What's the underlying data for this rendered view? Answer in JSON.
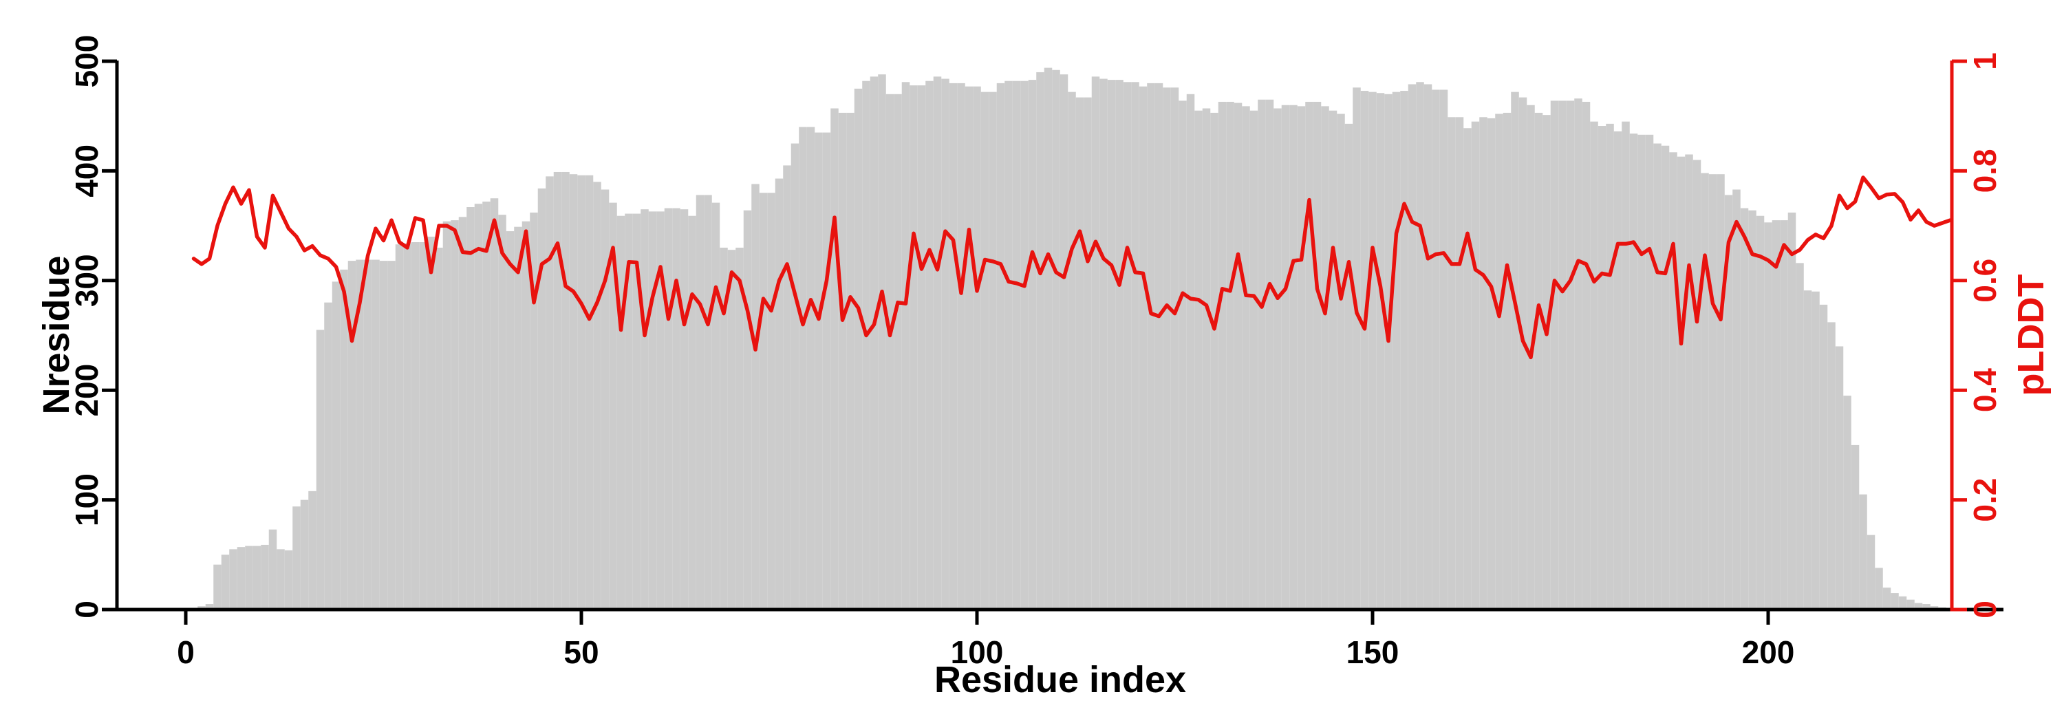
{
  "page": {
    "background": "#ffffff"
  },
  "chart_data": {
    "type": "bar+line dual-axis",
    "title": "",
    "xlabel": "Residue index",
    "x_range": [
      1,
      223
    ],
    "x_ticks": [
      0,
      50,
      100,
      150,
      200
    ],
    "left_axis": {
      "label": "Nresidue",
      "ticks": [
        0,
        100,
        200,
        300,
        400,
        500
      ],
      "range": [
        0,
        500
      ],
      "color": "#000000"
    },
    "right_axis": {
      "label": "pLDDT",
      "ticks": [
        0,
        0.2,
        0.4,
        0.6,
        0.8,
        1
      ],
      "range": [
        0,
        1
      ],
      "color": "#e8120e"
    },
    "grid": false,
    "legend": false,
    "series": [
      {
        "name": "Nresidue",
        "type": "bar",
        "y_axis": "left",
        "color": "#cccccc",
        "values": [
          0,
          3,
          5,
          41,
          50,
          55,
          57,
          58,
          58,
          59,
          73,
          55,
          54,
          94,
          100,
          108,
          255,
          280,
          299,
          310,
          318,
          319,
          319,
          319,
          318,
          318,
          333,
          334,
          335,
          335,
          340,
          330,
          354,
          355,
          358,
          367,
          370,
          372,
          375,
          360,
          345,
          349,
          354,
          362,
          384,
          395,
          399,
          399,
          397,
          396,
          396,
          390,
          383,
          371,
          359,
          361,
          361,
          365,
          363,
          363,
          366,
          366,
          365,
          359,
          378,
          378,
          371,
          330,
          328,
          330,
          364,
          388,
          380,
          380,
          393,
          405,
          425,
          440,
          440,
          435,
          435,
          457,
          453,
          453,
          475,
          482,
          486,
          488,
          470,
          470,
          481,
          478,
          478,
          482,
          486,
          484,
          480,
          480,
          477,
          477,
          472,
          472,
          480,
          482,
          482,
          482,
          483,
          490,
          494,
          492,
          488,
          472,
          467,
          467,
          486,
          484,
          483,
          483,
          481,
          481,
          477,
          480,
          480,
          476,
          476,
          464,
          470,
          455,
          457,
          453,
          463,
          463,
          462,
          459,
          455,
          465,
          465,
          457,
          460,
          460,
          459,
          463,
          463,
          459,
          455,
          452,
          443,
          476,
          473,
          472,
          471,
          470,
          472,
          473,
          479,
          481,
          479,
          474,
          474,
          449,
          449,
          439,
          445,
          449,
          448,
          452,
          453,
          472,
          467,
          460,
          453,
          451,
          464,
          464,
          464,
          466,
          463,
          445,
          441,
          443,
          436,
          445,
          434,
          433,
          433,
          425,
          423,
          417,
          413,
          415,
          410,
          398,
          397,
          397,
          378,
          383,
          366,
          364,
          359,
          353,
          355,
          355,
          362,
          316,
          291,
          290,
          278,
          262,
          240,
          195,
          150,
          105,
          68,
          38,
          20,
          15,
          12,
          9,
          6,
          5,
          3,
          2,
          1
        ]
      },
      {
        "name": "pLDDT",
        "type": "line",
        "y_axis": "right",
        "color": "#e8120e",
        "values": [
          0.64,
          0.63,
          0.64,
          0.7,
          0.74,
          0.77,
          0.74,
          0.765,
          0.68,
          0.66,
          0.755,
          0.725,
          0.695,
          0.68,
          0.655,
          0.663,
          0.646,
          0.64,
          0.625,
          0.58,
          0.49,
          0.56,
          0.645,
          0.695,
          0.673,
          0.71,
          0.67,
          0.66,
          0.714,
          0.71,
          0.615,
          0.7,
          0.7,
          0.692,
          0.652,
          0.65,
          0.658,
          0.654,
          0.71,
          0.65,
          0.63,
          0.615,
          0.69,
          0.56,
          0.63,
          0.64,
          0.668,
          0.59,
          0.58,
          0.558,
          0.53,
          0.56,
          0.6,
          0.66,
          0.51,
          0.634,
          0.633,
          0.5,
          0.57,
          0.625,
          0.53,
          0.6,
          0.52,
          0.575,
          0.557,
          0.52,
          0.588,
          0.54,
          0.615,
          0.6,
          0.545,
          0.474,
          0.567,
          0.545,
          0.6,
          0.63,
          0.575,
          0.52,
          0.565,
          0.53,
          0.6,
          0.715,
          0.528,
          0.57,
          0.55,
          0.5,
          0.52,
          0.58,
          0.5,
          0.56,
          0.558,
          0.686,
          0.621,
          0.656,
          0.62,
          0.69,
          0.674,
          0.577,
          0.693,
          0.581,
          0.638,
          0.635,
          0.63,
          0.598,
          0.595,
          0.59,
          0.652,
          0.613,
          0.648,
          0.615,
          0.606,
          0.658,
          0.69,
          0.635,
          0.671,
          0.64,
          0.628,
          0.592,
          0.66,
          0.615,
          0.613,
          0.54,
          0.535,
          0.555,
          0.54,
          0.577,
          0.567,
          0.565,
          0.555,
          0.512,
          0.585,
          0.581,
          0.648,
          0.573,
          0.572,
          0.552,
          0.594,
          0.568,
          0.585,
          0.636,
          0.638,
          0.747,
          0.585,
          0.54,
          0.66,
          0.567,
          0.634,
          0.541,
          0.512,
          0.66,
          0.589,
          0.49,
          0.686,
          0.74,
          0.707,
          0.7,
          0.64,
          0.648,
          0.65,
          0.63,
          0.63,
          0.686,
          0.62,
          0.61,
          0.589,
          0.535,
          0.628,
          0.56,
          0.49,
          0.46,
          0.555,
          0.502,
          0.6,
          0.58,
          0.6,
          0.636,
          0.63,
          0.598,
          0.613,
          0.61,
          0.667,
          0.667,
          0.67,
          0.648,
          0.658,
          0.615,
          0.613,
          0.667,
          0.485,
          0.628,
          0.525,
          0.646,
          0.558,
          0.529,
          0.67,
          0.707,
          0.68,
          0.648,
          0.644,
          0.637,
          0.625,
          0.665,
          0.648,
          0.656,
          0.674,
          0.684,
          0.677,
          0.7,
          0.755,
          0.732,
          0.744,
          0.788,
          0.77,
          0.75,
          0.757,
          0.758,
          0.743,
          0.711,
          0.728,
          0.707,
          0.7,
          0.705,
          0.71
        ]
      }
    ]
  }
}
